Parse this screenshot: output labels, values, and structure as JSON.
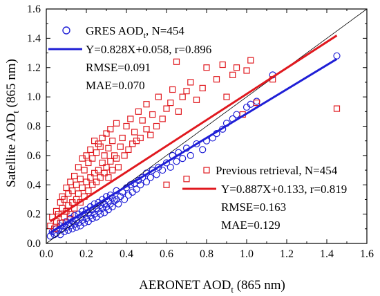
{
  "chart_data": {
    "type": "scatter",
    "xlabel": "AERONET AOD",
    "xlabel_sub": "t",
    "xlabel_suffix": " (865 nm)",
    "ylabel": "Satellite AOD",
    "ylabel_sub": "t",
    "ylabel_suffix": " (865 nm)",
    "xlim": [
      0.0,
      1.6
    ],
    "ylim": [
      0.0,
      1.6
    ],
    "xticks": [
      "0.0",
      "0.2",
      "0.4",
      "0.6",
      "0.8",
      "1.0",
      "1.2",
      "1.4",
      "1.6"
    ],
    "yticks": [
      "0.0",
      "0.2",
      "0.4",
      "0.6",
      "0.8",
      "1.0",
      "1.2",
      "1.4",
      "1.6"
    ],
    "one_to_one_line": true,
    "series": [
      {
        "label": "GRES AOD",
        "label_sub": "t",
        "label_suffix": ", N=454",
        "marker": "circle",
        "color": "#1f1fd6",
        "fit": {
          "slope": 0.828,
          "intercept": 0.058,
          "x_range": [
            0.02,
            1.45
          ]
        },
        "fit_text": "Y=0.828X+0.058, r=0.896",
        "rmse_text": "RMSE=0.091",
        "mae_text": "MAE=0.070",
        "n": 454,
        "points": [
          [
            0.02,
            0.05
          ],
          [
            0.03,
            0.08
          ],
          [
            0.04,
            0.06
          ],
          [
            0.05,
            0.1
          ],
          [
            0.05,
            0.07
          ],
          [
            0.06,
            0.09
          ],
          [
            0.07,
            0.12
          ],
          [
            0.07,
            0.06
          ],
          [
            0.08,
            0.1
          ],
          [
            0.08,
            0.14
          ],
          [
            0.09,
            0.08
          ],
          [
            0.09,
            0.12
          ],
          [
            0.1,
            0.11
          ],
          [
            0.1,
            0.15
          ],
          [
            0.11,
            0.09
          ],
          [
            0.11,
            0.13
          ],
          [
            0.12,
            0.12
          ],
          [
            0.12,
            0.17
          ],
          [
            0.13,
            0.1
          ],
          [
            0.13,
            0.15
          ],
          [
            0.14,
            0.13
          ],
          [
            0.14,
            0.19
          ],
          [
            0.15,
            0.11
          ],
          [
            0.15,
            0.16
          ],
          [
            0.16,
            0.14
          ],
          [
            0.16,
            0.2
          ],
          [
            0.17,
            0.12
          ],
          [
            0.17,
            0.18
          ],
          [
            0.18,
            0.16
          ],
          [
            0.18,
            0.22
          ],
          [
            0.19,
            0.14
          ],
          [
            0.19,
            0.2
          ],
          [
            0.2,
            0.17
          ],
          [
            0.2,
            0.23
          ],
          [
            0.21,
            0.15
          ],
          [
            0.21,
            0.21
          ],
          [
            0.22,
            0.19
          ],
          [
            0.22,
            0.25
          ],
          [
            0.23,
            0.17
          ],
          [
            0.23,
            0.23
          ],
          [
            0.24,
            0.2
          ],
          [
            0.24,
            0.27
          ],
          [
            0.25,
            0.18
          ],
          [
            0.25,
            0.24
          ],
          [
            0.26,
            0.22
          ],
          [
            0.26,
            0.28
          ],
          [
            0.27,
            0.2
          ],
          [
            0.27,
            0.26
          ],
          [
            0.28,
            0.24
          ],
          [
            0.28,
            0.3
          ],
          [
            0.29,
            0.21
          ],
          [
            0.29,
            0.27
          ],
          [
            0.3,
            0.25
          ],
          [
            0.3,
            0.32
          ],
          [
            0.31,
            0.23
          ],
          [
            0.31,
            0.29
          ],
          [
            0.32,
            0.27
          ],
          [
            0.32,
            0.33
          ],
          [
            0.33,
            0.25
          ],
          [
            0.33,
            0.31
          ],
          [
            0.34,
            0.29
          ],
          [
            0.35,
            0.3
          ],
          [
            0.35,
            0.36
          ],
          [
            0.36,
            0.27
          ],
          [
            0.37,
            0.32
          ],
          [
            0.38,
            0.35
          ],
          [
            0.39,
            0.3
          ],
          [
            0.4,
            0.38
          ],
          [
            0.41,
            0.33
          ],
          [
            0.42,
            0.4
          ],
          [
            0.43,
            0.35
          ],
          [
            0.44,
            0.41
          ],
          [
            0.45,
            0.37
          ],
          [
            0.46,
            0.43
          ],
          [
            0.47,
            0.4
          ],
          [
            0.48,
            0.45
          ],
          [
            0.5,
            0.42
          ],
          [
            0.5,
            0.48
          ],
          [
            0.52,
            0.45
          ],
          [
            0.53,
            0.5
          ],
          [
            0.55,
            0.47
          ],
          [
            0.56,
            0.52
          ],
          [
            0.58,
            0.5
          ],
          [
            0.6,
            0.55
          ],
          [
            0.62,
            0.52
          ],
          [
            0.63,
            0.6
          ],
          [
            0.65,
            0.56
          ],
          [
            0.66,
            0.62
          ],
          [
            0.68,
            0.58
          ],
          [
            0.7,
            0.65
          ],
          [
            0.72,
            0.6
          ],
          [
            0.75,
            0.68
          ],
          [
            0.78,
            0.64
          ],
          [
            0.8,
            0.7
          ],
          [
            0.83,
            0.72
          ],
          [
            0.85,
            0.75
          ],
          [
            0.88,
            0.78
          ],
          [
            0.9,
            0.82
          ],
          [
            0.93,
            0.85
          ],
          [
            0.95,
            0.88
          ],
          [
            1.0,
            0.93
          ],
          [
            1.02,
            0.95
          ],
          [
            1.05,
            0.97
          ],
          [
            1.13,
            1.15
          ],
          [
            1.45,
            1.28
          ]
        ]
      },
      {
        "label": "Previous retrieval, N=454",
        "marker": "square",
        "color": "#e0191f",
        "fit": {
          "slope": 0.887,
          "intercept": 0.133,
          "x_range": [
            0.02,
            1.45
          ]
        },
        "fit_text": "Y=0.887X+0.133, r=0.819",
        "rmse_text": "RMSE=0.163",
        "mae_text": "MAE=0.129",
        "n": 454,
        "points": [
          [
            0.02,
            0.12
          ],
          [
            0.03,
            0.18
          ],
          [
            0.04,
            0.1
          ],
          [
            0.05,
            0.22
          ],
          [
            0.05,
            0.15
          ],
          [
            0.06,
            0.2
          ],
          [
            0.07,
            0.28
          ],
          [
            0.07,
            0.14
          ],
          [
            0.08,
            0.24
          ],
          [
            0.08,
            0.32
          ],
          [
            0.09,
            0.18
          ],
          [
            0.09,
            0.3
          ],
          [
            0.1,
            0.22
          ],
          [
            0.1,
            0.38
          ],
          [
            0.11,
            0.26
          ],
          [
            0.11,
            0.34
          ],
          [
            0.12,
            0.2
          ],
          [
            0.12,
            0.42
          ],
          [
            0.13,
            0.28
          ],
          [
            0.13,
            0.36
          ],
          [
            0.14,
            0.24
          ],
          [
            0.14,
            0.46
          ],
          [
            0.15,
            0.3
          ],
          [
            0.15,
            0.4
          ],
          [
            0.16,
            0.34
          ],
          [
            0.16,
            0.52
          ],
          [
            0.17,
            0.28
          ],
          [
            0.17,
            0.44
          ],
          [
            0.18,
            0.38
          ],
          [
            0.18,
            0.58
          ],
          [
            0.19,
            0.32
          ],
          [
            0.19,
            0.5
          ],
          [
            0.2,
            0.42
          ],
          [
            0.2,
            0.6
          ],
          [
            0.21,
            0.36
          ],
          [
            0.21,
            0.55
          ],
          [
            0.22,
            0.45
          ],
          [
            0.22,
            0.64
          ],
          [
            0.23,
            0.4
          ],
          [
            0.23,
            0.58
          ],
          [
            0.24,
            0.48
          ],
          [
            0.24,
            0.7
          ],
          [
            0.25,
            0.42
          ],
          [
            0.25,
            0.62
          ],
          [
            0.26,
            0.5
          ],
          [
            0.26,
            0.68
          ],
          [
            0.27,
            0.45
          ],
          [
            0.27,
            0.66
          ],
          [
            0.28,
            0.55
          ],
          [
            0.28,
            0.72
          ],
          [
            0.29,
            0.48
          ],
          [
            0.29,
            0.6
          ],
          [
            0.3,
            0.52
          ],
          [
            0.3,
            0.75
          ],
          [
            0.31,
            0.45
          ],
          [
            0.31,
            0.65
          ],
          [
            0.32,
            0.56
          ],
          [
            0.32,
            0.78
          ],
          [
            0.33,
            0.5
          ],
          [
            0.33,
            0.7
          ],
          [
            0.34,
            0.6
          ],
          [
            0.35,
            0.58
          ],
          [
            0.35,
            0.82
          ],
          [
            0.36,
            0.52
          ],
          [
            0.37,
            0.66
          ],
          [
            0.38,
            0.72
          ],
          [
            0.39,
            0.6
          ],
          [
            0.4,
            0.8
          ],
          [
            0.41,
            0.64
          ],
          [
            0.42,
            0.85
          ],
          [
            0.43,
            0.68
          ],
          [
            0.44,
            0.76
          ],
          [
            0.45,
            0.7
          ],
          [
            0.46,
            0.9
          ],
          [
            0.47,
            0.72
          ],
          [
            0.48,
            0.84
          ],
          [
            0.5,
            0.78
          ],
          [
            0.5,
            0.95
          ],
          [
            0.52,
            0.74
          ],
          [
            0.53,
            0.88
          ],
          [
            0.55,
            0.8
          ],
          [
            0.56,
            1.0
          ],
          [
            0.58,
            0.85
          ],
          [
            0.6,
            0.92
          ],
          [
            0.62,
            0.96
          ],
          [
            0.63,
            1.05
          ],
          [
            0.65,
            1.24
          ],
          [
            0.66,
            0.9
          ],
          [
            0.68,
            1.0
          ],
          [
            0.7,
            1.04
          ],
          [
            0.72,
            1.1
          ],
          [
            0.75,
            0.98
          ],
          [
            0.78,
            1.06
          ],
          [
            0.8,
            1.2
          ],
          [
            0.85,
            1.12
          ],
          [
            0.88,
            1.22
          ],
          [
            0.9,
            1.0
          ],
          [
            0.93,
            1.15
          ],
          [
            0.95,
            1.2
          ],
          [
            0.98,
            0.88
          ],
          [
            1.0,
            1.18
          ],
          [
            1.02,
            1.25
          ],
          [
            1.05,
            0.96
          ],
          [
            1.13,
            1.12
          ],
          [
            1.45,
            0.92
          ],
          [
            0.6,
            0.4
          ],
          [
            0.7,
            0.44
          ],
          [
            0.8,
            0.5
          ]
        ]
      }
    ]
  }
}
